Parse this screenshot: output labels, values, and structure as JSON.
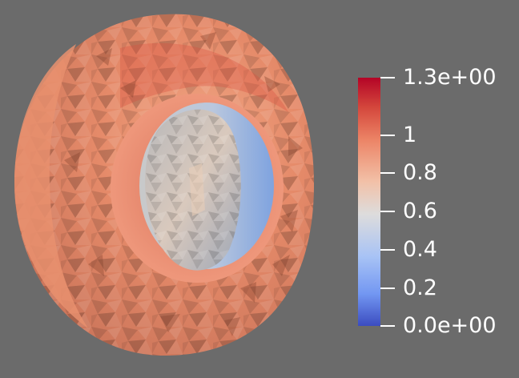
{
  "scalar_bar": {
    "labels": [
      "1.3e+00",
      "1",
      "0.8",
      "0.6",
      "0.4",
      "0.2",
      "0.0e+00"
    ],
    "colors": {
      "max": "#b40426",
      "high": "#e7745b",
      "mid": "#dddcdc",
      "low": "#6d90f0",
      "min": "#3b4cc0"
    }
  },
  "scene": {
    "background": "#6b6b6b",
    "outer_shell_color": "#e7906d",
    "inner_sphere_color": "#9bb6e4"
  }
}
